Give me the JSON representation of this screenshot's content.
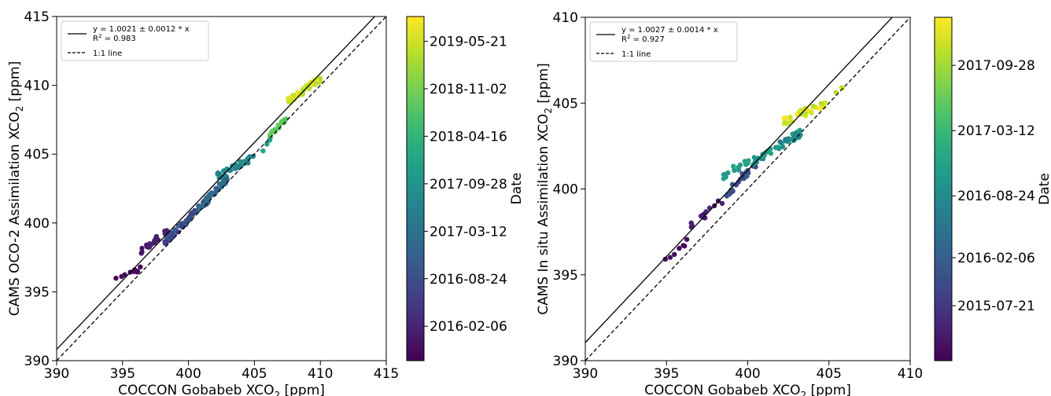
{
  "chart_data": [
    {
      "type": "scatter",
      "xlabel": "COCCON Gobabeb XCO",
      "xlabel_sub": "2",
      "xlabel_unit": " [ppm]",
      "ylabel": "CAMS OCO-2 Assimilation XCO",
      "ylabel_sub": "2",
      "ylabel_unit": " [ppm]",
      "xlim": [
        390,
        415
      ],
      "ylim": [
        390,
        415
      ],
      "xticks": [
        390,
        395,
        400,
        405,
        410,
        415
      ],
      "yticks": [
        390,
        395,
        400,
        405,
        410,
        415
      ],
      "grid": false,
      "legend": {
        "position": "top-left",
        "fit_label": "y = 1.0021 ± 0.0012 * x",
        "r2_label": "R",
        "r2_sup": "2",
        "r2_value": " = 0.983",
        "identity_label": "1:1 line"
      },
      "fit": {
        "slope": 1.0021
      },
      "colorbar": {
        "label": "Date",
        "ticks": [
          "2019-05-21",
          "2018-11-02",
          "2018-04-16",
          "2017-09-28",
          "2017-03-12",
          "2016-08-24",
          "2016-02-06",
          "2015-07-21"
        ],
        "tick_values": [
          0.928,
          0.79,
          0.652,
          0.514,
          0.376,
          0.238,
          0.1,
          -0.038
        ]
      },
      "clusters": [
        {
          "x": [
            394.5,
            396.5
          ],
          "y": [
            395.8,
            396.8
          ],
          "c": [
            0.0,
            0.04
          ],
          "n": 9
        },
        {
          "x": [
            396.3,
            398.5
          ],
          "y": [
            397.8,
            399.6
          ],
          "c": [
            0.04,
            0.1
          ],
          "n": 22
        },
        {
          "x": [
            398.2,
            401.5
          ],
          "y": [
            398.6,
            401.7
          ],
          "c": [
            0.16,
            0.3
          ],
          "n": 55
        },
        {
          "x": [
            400.5,
            403.0
          ],
          "y": [
            400.8,
            403.3
          ],
          "c": [
            0.3,
            0.38
          ],
          "n": 40
        },
        {
          "x": [
            402.2,
            405.0
          ],
          "y": [
            403.4,
            404.8
          ],
          "c": [
            0.42,
            0.52
          ],
          "n": 32
        },
        {
          "x": [
            405.5,
            406.3
          ],
          "y": [
            405.3,
            406.1
          ],
          "c": [
            0.55,
            0.6
          ],
          "n": 4
        },
        {
          "x": [
            406.0,
            407.5
          ],
          "y": [
            406.3,
            407.6
          ],
          "c": [
            0.72,
            0.8
          ],
          "n": 18
        },
        {
          "x": [
            407.5,
            410.0
          ],
          "y": [
            408.8,
            410.5
          ],
          "c": [
            0.86,
            1.0
          ],
          "n": 60
        }
      ]
    },
    {
      "type": "scatter",
      "xlabel": "COCCON Gobabeb XCO",
      "xlabel_sub": "2",
      "xlabel_unit": " [ppm]",
      "ylabel": "CAMS In situ Assimilation XCO",
      "ylabel_sub": "2",
      "ylabel_unit": " [ppm]",
      "xlim": [
        390,
        410
      ],
      "ylim": [
        390,
        410
      ],
      "xticks": [
        390,
        395,
        400,
        405,
        410
      ],
      "yticks": [
        390,
        395,
        400,
        405,
        410
      ],
      "grid": false,
      "legend": {
        "position": "top-left",
        "fit_label": "y = 1.0027 ± 0.0014 * x",
        "r2_label": "R",
        "r2_sup": "2",
        "r2_value": " = 0.927",
        "identity_label": "1:1 line"
      },
      "fit": {
        "slope": 1.0027
      },
      "colorbar": {
        "label": "Date",
        "ticks": [
          "2017-09-28",
          "2017-03-12",
          "2016-08-24",
          "2016-02-06",
          "2015-07-21"
        ],
        "tick_values": [
          0.86,
          0.67,
          0.48,
          0.3,
          0.16
        ]
      },
      "clusters": [
        {
          "x": [
            394.5,
            396.3
          ],
          "y": [
            395.3,
            397.0
          ],
          "c": [
            0.0,
            0.05
          ],
          "n": 7
        },
        {
          "x": [
            396.5,
            398.6
          ],
          "y": [
            397.8,
            399.5
          ],
          "c": [
            0.05,
            0.12
          ],
          "n": 12
        },
        {
          "x": [
            398.7,
            400.6
          ],
          "y": [
            399.7,
            401.6
          ],
          "c": [
            0.18,
            0.3
          ],
          "n": 22
        },
        {
          "x": [
            398.5,
            400.3
          ],
          "y": [
            400.8,
            401.7
          ],
          "c": [
            0.52,
            0.6
          ],
          "n": 14
        },
        {
          "x": [
            400.3,
            403.3
          ],
          "y": [
            401.6,
            403.3
          ],
          "c": [
            0.42,
            0.6
          ],
          "n": 45
        },
        {
          "x": [
            402.2,
            404.8
          ],
          "y": [
            403.9,
            405.0
          ],
          "c": [
            0.88,
            1.0
          ],
          "n": 32
        },
        {
          "x": [
            405.3,
            405.9
          ],
          "y": [
            405.5,
            406.0
          ],
          "c": [
            0.85,
            0.9
          ],
          "n": 3
        }
      ]
    }
  ]
}
